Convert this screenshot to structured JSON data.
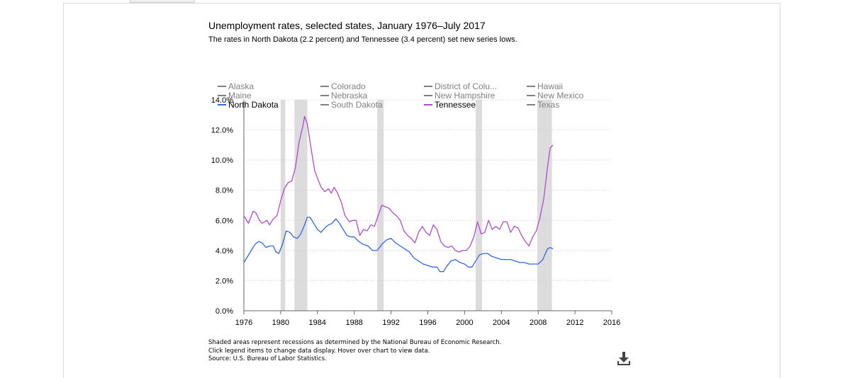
{
  "chart_data": {
    "type": "line",
    "title": "Unemployment rates, selected states, January 1976–July 2017",
    "subtitle": "The rates in North Dakota (2.2 percent) and Tennessee (3.4 percent) set new series lows.",
    "xlabel": "",
    "ylabel": "",
    "xlim": [
      1976,
      2016
    ],
    "ylim": [
      0,
      14
    ],
    "x_ticks": [
      1976,
      1980,
      1984,
      1988,
      1992,
      1996,
      2000,
      2004,
      2008,
      2012,
      2016
    ],
    "y_ticks": [
      0,
      2,
      4,
      6,
      8,
      10,
      12,
      14
    ],
    "y_tick_labels": [
      "0.0%",
      "2.0%",
      "4.0%",
      "6.0%",
      "8.0%",
      "10.0%",
      "12.0%",
      "14.0%"
    ],
    "grid": "horizontal dotted",
    "legend_placement": "top",
    "legend": [
      {
        "name": "Alaska",
        "active": false
      },
      {
        "name": "Colorado",
        "active": false
      },
      {
        "name": "District of Colu...",
        "active": false
      },
      {
        "name": "Hawaii",
        "active": false
      },
      {
        "name": "Maine",
        "active": false
      },
      {
        "name": "Nebraska",
        "active": false
      },
      {
        "name": "New Hampshire",
        "active": false
      },
      {
        "name": "New Mexico",
        "active": false
      },
      {
        "name": "North Dakota",
        "active": true,
        "color": "#3366ee"
      },
      {
        "name": "South Dakota",
        "active": false
      },
      {
        "name": "Tennessee",
        "active": true,
        "color": "#b04bd8"
      },
      {
        "name": "Texas",
        "active": false
      }
    ],
    "recessions": [
      [
        1980.0,
        1980.5
      ],
      [
        1981.5,
        1982.9
      ],
      [
        1990.5,
        1991.2
      ],
      [
        2001.2,
        2001.9
      ],
      [
        2007.9,
        2009.5
      ]
    ],
    "series": [
      {
        "name": "Tennessee",
        "color": "#b04bd8",
        "x": [
          1976.0,
          1976.5,
          1977.0,
          1977.3,
          1977.7,
          1978.0,
          1978.5,
          1978.8,
          1979.2,
          1979.6,
          1980.0,
          1980.4,
          1980.8,
          1981.2,
          1981.6,
          1982.0,
          1982.4,
          1982.6,
          1982.9,
          1983.3,
          1983.7,
          1984.0,
          1984.4,
          1984.8,
          1985.2,
          1985.5,
          1985.8,
          1986.2,
          1986.6,
          1987.0,
          1987.5,
          1987.8,
          1988.2,
          1988.6,
          1989.0,
          1989.4,
          1989.8,
          1990.2,
          1990.6,
          1991.0,
          1991.4,
          1991.8,
          1992.2,
          1992.6,
          1993.0,
          1993.4,
          1993.8,
          1994.2,
          1994.6,
          1995.0,
          1995.4,
          1995.8,
          1996.2,
          1996.6,
          1997.0,
          1997.4,
          1997.8,
          1998.2,
          1998.6,
          1999.0,
          1999.4,
          1999.8,
          2000.2,
          2000.6,
          2001.0,
          2001.4,
          2001.8,
          2002.2,
          2002.6,
          2003.0,
          2003.4,
          2003.8,
          2004.2,
          2004.6,
          2005.0,
          2005.4,
          2005.8,
          2006.2,
          2006.6,
          2007.0,
          2007.4,
          2007.8,
          2008.2,
          2008.6,
          2009.0,
          2009.3,
          2009.6
        ],
        "values": [
          6.3,
          5.8,
          6.6,
          6.5,
          6.0,
          5.8,
          6.0,
          5.7,
          6.1,
          6.3,
          7.3,
          8.1,
          8.5,
          8.6,
          9.5,
          11.2,
          12.2,
          12.9,
          12.4,
          10.8,
          9.3,
          8.8,
          8.2,
          7.9,
          8.1,
          7.8,
          8.2,
          7.8,
          7.2,
          6.3,
          5.9,
          6.0,
          6.0,
          5.0,
          5.4,
          5.3,
          5.7,
          5.6,
          6.3,
          7.0,
          6.9,
          6.8,
          6.5,
          6.3,
          6.0,
          5.3,
          5.0,
          4.8,
          4.5,
          5.2,
          5.6,
          5.2,
          5.0,
          5.7,
          5.4,
          4.6,
          4.3,
          4.2,
          4.3,
          4.0,
          3.9,
          4.0,
          4.0,
          4.3,
          4.9,
          5.9,
          5.1,
          5.2,
          6.0,
          5.4,
          5.6,
          5.4,
          5.9,
          5.9,
          5.2,
          5.6,
          5.5,
          5.0,
          4.6,
          4.3,
          4.9,
          5.3,
          6.2,
          7.4,
          9.5,
          10.8,
          11.0
        ]
      },
      {
        "name": "North Dakota",
        "color": "#3366ee",
        "x": [
          1976.0,
          1976.4,
          1976.8,
          1977.2,
          1977.6,
          1978.0,
          1978.4,
          1978.8,
          1979.2,
          1979.5,
          1979.8,
          1980.2,
          1980.6,
          1981.0,
          1981.4,
          1981.8,
          1982.2,
          1982.6,
          1982.9,
          1983.2,
          1983.6,
          1984.0,
          1984.4,
          1984.8,
          1985.2,
          1985.6,
          1986.0,
          1986.4,
          1986.8,
          1987.2,
          1987.6,
          1988.0,
          1988.5,
          1989.0,
          1989.5,
          1990.0,
          1990.5,
          1991.0,
          1991.5,
          1992.0,
          1992.5,
          1993.0,
          1993.5,
          1994.0,
          1994.5,
          1995.0,
          1995.5,
          1996.0,
          1996.5,
          1997.0,
          1997.3,
          1997.7,
          1998.0,
          1998.5,
          1999.0,
          1999.5,
          2000.0,
          2000.4,
          2000.8,
          2001.2,
          2001.6,
          2002.0,
          2002.5,
          2003.0,
          2003.5,
          2004.0,
          2004.5,
          2005.0,
          2005.5,
          2006.0,
          2006.5,
          2007.0,
          2007.5,
          2008.0,
          2008.5,
          2009.0,
          2009.3,
          2009.6
        ],
        "values": [
          3.2,
          3.6,
          4.0,
          4.4,
          4.6,
          4.5,
          4.2,
          4.3,
          4.3,
          3.9,
          3.8,
          4.4,
          5.3,
          5.2,
          4.9,
          4.8,
          5.1,
          5.7,
          6.2,
          6.2,
          5.8,
          5.4,
          5.2,
          5.5,
          5.7,
          5.8,
          6.1,
          5.8,
          5.4,
          5.0,
          4.9,
          4.9,
          4.6,
          4.4,
          4.3,
          4.0,
          4.0,
          4.4,
          4.7,
          4.8,
          4.5,
          4.3,
          4.1,
          3.9,
          3.5,
          3.3,
          3.1,
          3.0,
          2.9,
          2.9,
          2.6,
          2.6,
          2.9,
          3.3,
          3.4,
          3.2,
          3.1,
          2.9,
          2.9,
          3.3,
          3.7,
          3.8,
          3.8,
          3.6,
          3.5,
          3.4,
          3.4,
          3.4,
          3.3,
          3.2,
          3.2,
          3.1,
          3.1,
          3.1,
          3.4,
          4.1,
          4.2,
          4.1
        ]
      }
    ]
  },
  "footer": {
    "notes": [
      "Shaded areas represent recessions as determined by the National Bureau of Economic Research.",
      "Click legend items to change data display. Hover over chart to view data.",
      "Source: U.S. Bureau of Labor Statistics."
    ]
  },
  "colors": {
    "inactive_legend": "#808080",
    "recession_shade": "#dcdcdc",
    "gridline": "#d0d0d0"
  },
  "icons": {
    "download": "download-icon"
  }
}
